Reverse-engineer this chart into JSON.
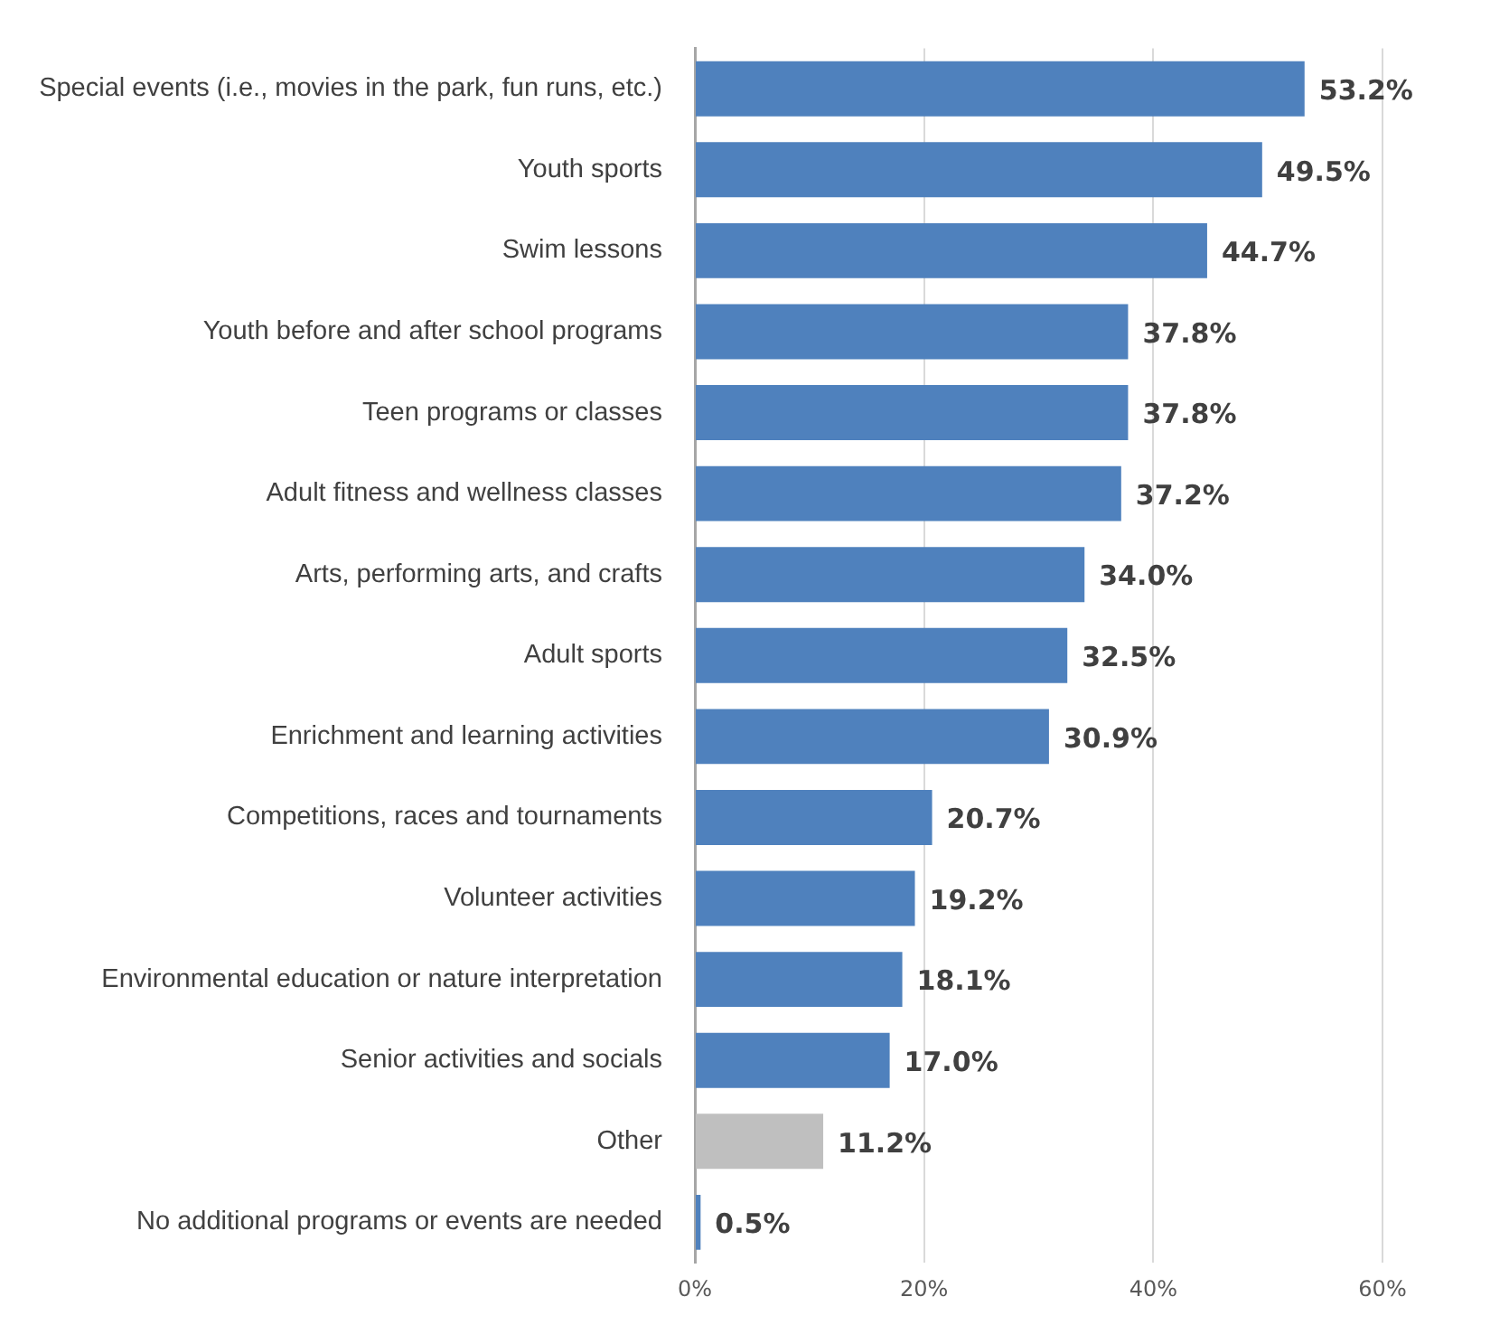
{
  "chart_data": {
    "type": "bar",
    "orientation": "horizontal",
    "categories": [
      "Special events (i.e., movies in the park, fun runs, etc.)",
      "Youth sports",
      "Swim lessons",
      "Youth before and after school programs",
      "Teen programs or classes",
      "Adult fitness and wellness classes",
      "Arts, performing arts, and crafts",
      "Adult sports",
      "Enrichment and learning activities",
      "Competitions, races and tournaments",
      "Volunteer activities",
      "Environmental education or nature interpretation",
      "Senior activities and socials",
      "Other",
      "No additional programs or events are needed"
    ],
    "values": [
      53.2,
      49.5,
      44.7,
      37.8,
      37.8,
      37.2,
      34.0,
      32.5,
      30.9,
      20.7,
      19.2,
      18.1,
      17.0,
      11.2,
      0.5
    ],
    "colors": [
      "#4f81bd",
      "#4f81bd",
      "#4f81bd",
      "#4f81bd",
      "#4f81bd",
      "#4f81bd",
      "#4f81bd",
      "#4f81bd",
      "#4f81bd",
      "#4f81bd",
      "#4f81bd",
      "#4f81bd",
      "#4f81bd",
      "#bfbfbf",
      "#4f81bd"
    ],
    "value_labels": [
      "53.2%",
      "49.5%",
      "44.7%",
      "37.8%",
      "37.8%",
      "37.2%",
      "34.0%",
      "32.5%",
      "30.9%",
      "20.7%",
      "19.2%",
      "18.1%",
      "17.0%",
      "11.2%",
      "0.5%"
    ],
    "xlim": [
      0,
      60
    ],
    "xticks": [
      {
        "value": 0,
        "label": "0%"
      },
      {
        "value": 20,
        "label": "20%"
      },
      {
        "value": 40,
        "label": "40%"
      },
      {
        "value": 60,
        "label": "60%"
      }
    ],
    "grid": "x",
    "legend": false
  }
}
